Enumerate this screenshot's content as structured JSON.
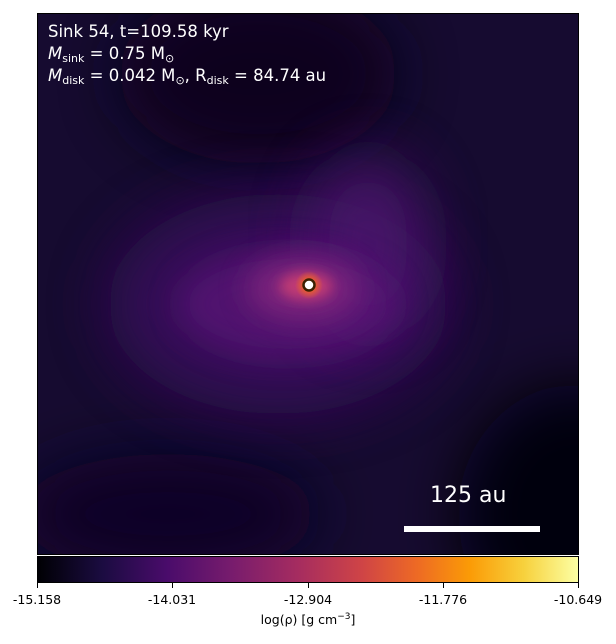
{
  "annotation": {
    "line1": "Sink 54, t=109.58 kyr",
    "msink_symbol": "M",
    "msink_sub": "sink",
    "msink_value": " = 0.75 M",
    "msun_sub": "⊙",
    "mdisk_symbol": "M",
    "mdisk_sub": "disk",
    "mdisk_value": " = 0.042 M",
    "mdisk_sun_sub": "⊙",
    "rdisk_prefix": ", R",
    "rdisk_sub": "disk",
    "rdisk_value": " = 84.74 au"
  },
  "scalebar": {
    "label": "125 au"
  },
  "colorbar": {
    "ticks": [
      "-15.158",
      "-14.031",
      "-12.904",
      "-11.776",
      "-10.649"
    ],
    "label_main": "log(ρ) [g cm",
    "label_sup": "−3",
    "label_end": "]",
    "colormap": "inferno"
  },
  "colors": {
    "background": "#170c33",
    "sink_marker": "#ffffff"
  }
}
